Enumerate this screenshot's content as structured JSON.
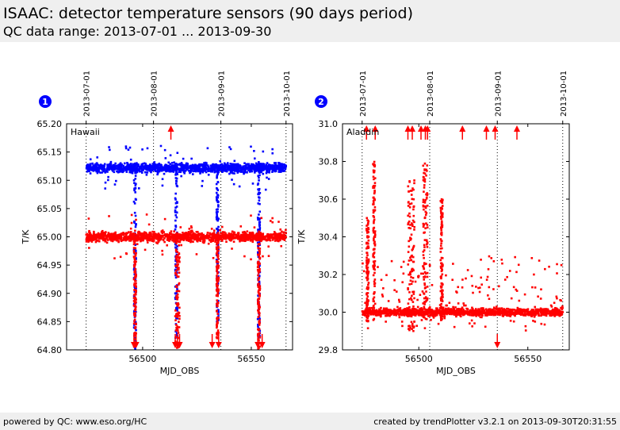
{
  "header": {
    "title": "ISAAC: detector temperature sensors (90 days period)",
    "subtitle": "QC data range: 2013-07-01 ... 2013-09-30"
  },
  "footer": {
    "left": "powered by QC: www.eso.org/HC",
    "right": "created by trendPlotter v3.2.1 on 2013-09-30T20:31:55"
  },
  "colors": {
    "series_a": "#0000ff",
    "series_b": "#ff0000",
    "badge": "#0000ff"
  },
  "chart_data": [
    {
      "type": "scatter",
      "badge": "1",
      "panel_label": "Hawaii",
      "xlabel": "MJD_OBS",
      "ylabel": "T/K",
      "xlim": [
        56465,
        56569
      ],
      "ylim": [
        64.8,
        65.2
      ],
      "x_ticks": [
        56500,
        56550
      ],
      "y_ticks": [
        64.8,
        64.85,
        64.9,
        64.95,
        65.0,
        65.05,
        65.1,
        65.15,
        65.2
      ],
      "y_tick_labels": [
        "64.80",
        "64.85",
        "64.90",
        "64.95",
        "65.00",
        "65.05",
        "65.10",
        "65.15",
        "65.20"
      ],
      "date_markers": [
        {
          "label": "2013-07-01",
          "mjd": 56474
        },
        {
          "label": "2013-08-01",
          "mjd": 56505
        },
        {
          "label": "2013-09-01",
          "mjd": 56536
        },
        {
          "label": "2013-10-01",
          "mjd": 56566
        }
      ],
      "grid": false,
      "series": [
        {
          "color": "blue",
          "baseline": 65.122,
          "spread": 0.008,
          "x_range": [
            56474,
            56566
          ],
          "excursions": [
            [
              56496,
              56497,
              64.8,
              65.12
            ],
            [
              56515,
              56516,
              64.82,
              65.12
            ],
            [
              56534,
              56535,
              64.85,
              65.12
            ],
            [
              56553,
              56554,
              64.82,
              65.12
            ]
          ]
        },
        {
          "color": "red",
          "baseline": 65.0,
          "spread": 0.008,
          "x_range": [
            56474,
            56566
          ],
          "excursions": [
            [
              56496,
              56497,
              64.8,
              65.0
            ],
            [
              56515,
              56517,
              64.8,
              65.0
            ],
            [
              56534,
              56535,
              64.82,
              65.0
            ],
            [
              56553,
              56554,
              64.8,
              65.0
            ]
          ]
        }
      ],
      "out_of_range_arrows": [
        {
          "mjd": 56496,
          "dir": "down"
        },
        {
          "mjd": 56497,
          "dir": "down"
        },
        {
          "mjd": 56513,
          "dir": "up"
        },
        {
          "mjd": 56515,
          "dir": "down"
        },
        {
          "mjd": 56516,
          "dir": "down"
        },
        {
          "mjd": 56517,
          "dir": "down"
        },
        {
          "mjd": 56532,
          "dir": "down"
        },
        {
          "mjd": 56535,
          "dir": "down"
        },
        {
          "mjd": 56553,
          "dir": "down"
        },
        {
          "mjd": 56555,
          "dir": "down"
        }
      ]
    },
    {
      "type": "scatter",
      "badge": "2",
      "panel_label": "Aladdin",
      "xlabel": "MJD_OBS",
      "ylabel": "T/K",
      "xlim": [
        56465,
        56569
      ],
      "ylim": [
        29.8,
        31.0
      ],
      "x_ticks": [
        56500,
        56550
      ],
      "y_ticks": [
        29.8,
        30.0,
        30.2,
        30.4,
        30.6,
        30.8,
        31.0
      ],
      "y_tick_labels": [
        "29.8",
        "30.0",
        "30.2",
        "30.4",
        "30.6",
        "30.8",
        "31.0"
      ],
      "date_markers": [
        {
          "label": "2013-07-01",
          "mjd": 56474
        },
        {
          "label": "2013-08-01",
          "mjd": 56505
        },
        {
          "label": "2013-09-01",
          "mjd": 56536
        },
        {
          "label": "2013-10-01",
          "mjd": 56566
        }
      ],
      "grid": false,
      "series": [
        {
          "color": "red",
          "baseline": 30.0,
          "spread": 0.02,
          "x_range": [
            56474,
            56566
          ],
          "excursions": [
            [
              56476,
              56477,
              29.95,
              30.5
            ],
            [
              56479,
              56480,
              29.95,
              30.8
            ],
            [
              56495,
              56498,
              29.9,
              30.7
            ],
            [
              56502,
              56504,
              29.95,
              30.8
            ],
            [
              56510,
              56511,
              29.95,
              30.6
            ]
          ]
        }
      ],
      "out_of_range_arrows": [
        {
          "mjd": 56476,
          "dir": "up"
        },
        {
          "mjd": 56480,
          "dir": "up"
        },
        {
          "mjd": 56495,
          "dir": "up"
        },
        {
          "mjd": 56497,
          "dir": "up"
        },
        {
          "mjd": 56501,
          "dir": "up"
        },
        {
          "mjd": 56503,
          "dir": "up"
        },
        {
          "mjd": 56504,
          "dir": "up"
        },
        {
          "mjd": 56520,
          "dir": "up"
        },
        {
          "mjd": 56531,
          "dir": "up"
        },
        {
          "mjd": 56535,
          "dir": "up"
        },
        {
          "mjd": 56545,
          "dir": "up"
        },
        {
          "mjd": 56536,
          "dir": "down"
        }
      ]
    }
  ]
}
